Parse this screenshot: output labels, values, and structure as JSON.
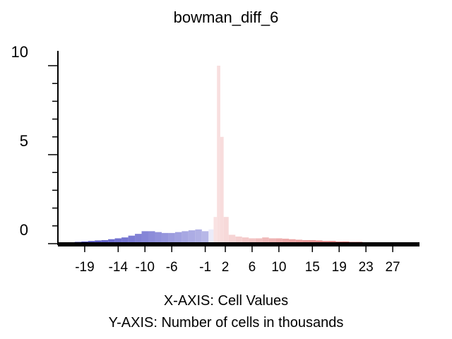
{
  "chart_data": {
    "type": "bar",
    "title": "bowman_diff_6",
    "xlabel": "X-AXIS: Cell Values",
    "ylabel": "Y-AXIS: Number of cells in thousands",
    "ylim": [
      0,
      10
    ],
    "xlim": [
      -23,
      31
    ],
    "y_tick_labels": [
      "0",
      "5",
      "10"
    ],
    "x_tick_labels": [
      "-19",
      "-14",
      "-10",
      "-6",
      "-1",
      "2",
      "6",
      "10",
      "15",
      "19",
      "23",
      "27"
    ],
    "grid": false,
    "legend": "none",
    "colors": {
      "negative": "#4040c0",
      "neutral": "#ffffff",
      "positive": "#d02020"
    },
    "x": [
      -22,
      -21,
      -20,
      -19,
      -18,
      -17,
      -16,
      -15,
      -14,
      -13,
      -12,
      -11,
      -10,
      -9,
      -8,
      -7,
      -6,
      -5,
      -4,
      -3,
      -2,
      -1,
      0,
      0.5,
      1,
      1.5,
      2,
      3,
      4,
      5,
      6,
      7,
      8,
      9,
      10,
      11,
      12,
      13,
      14,
      15,
      16,
      17,
      18,
      19,
      20,
      21,
      22,
      23,
      24,
      25,
      26,
      27,
      28,
      29,
      30
    ],
    "values": [
      0.05,
      0.08,
      0.1,
      0.12,
      0.15,
      0.18,
      0.2,
      0.25,
      0.3,
      0.35,
      0.45,
      0.55,
      0.7,
      0.7,
      0.65,
      0.6,
      0.6,
      0.65,
      0.7,
      0.75,
      0.8,
      0.7,
      0.8,
      1.5,
      10.0,
      6.0,
      1.5,
      0.5,
      0.4,
      0.35,
      0.3,
      0.3,
      0.35,
      0.3,
      0.3,
      0.28,
      0.25,
      0.22,
      0.2,
      0.2,
      0.18,
      0.15,
      0.15,
      0.12,
      0.12,
      0.1,
      0.1,
      0.08,
      0.08,
      0.06,
      0.06,
      0.05,
      0.05,
      0.04,
      0.04
    ]
  }
}
